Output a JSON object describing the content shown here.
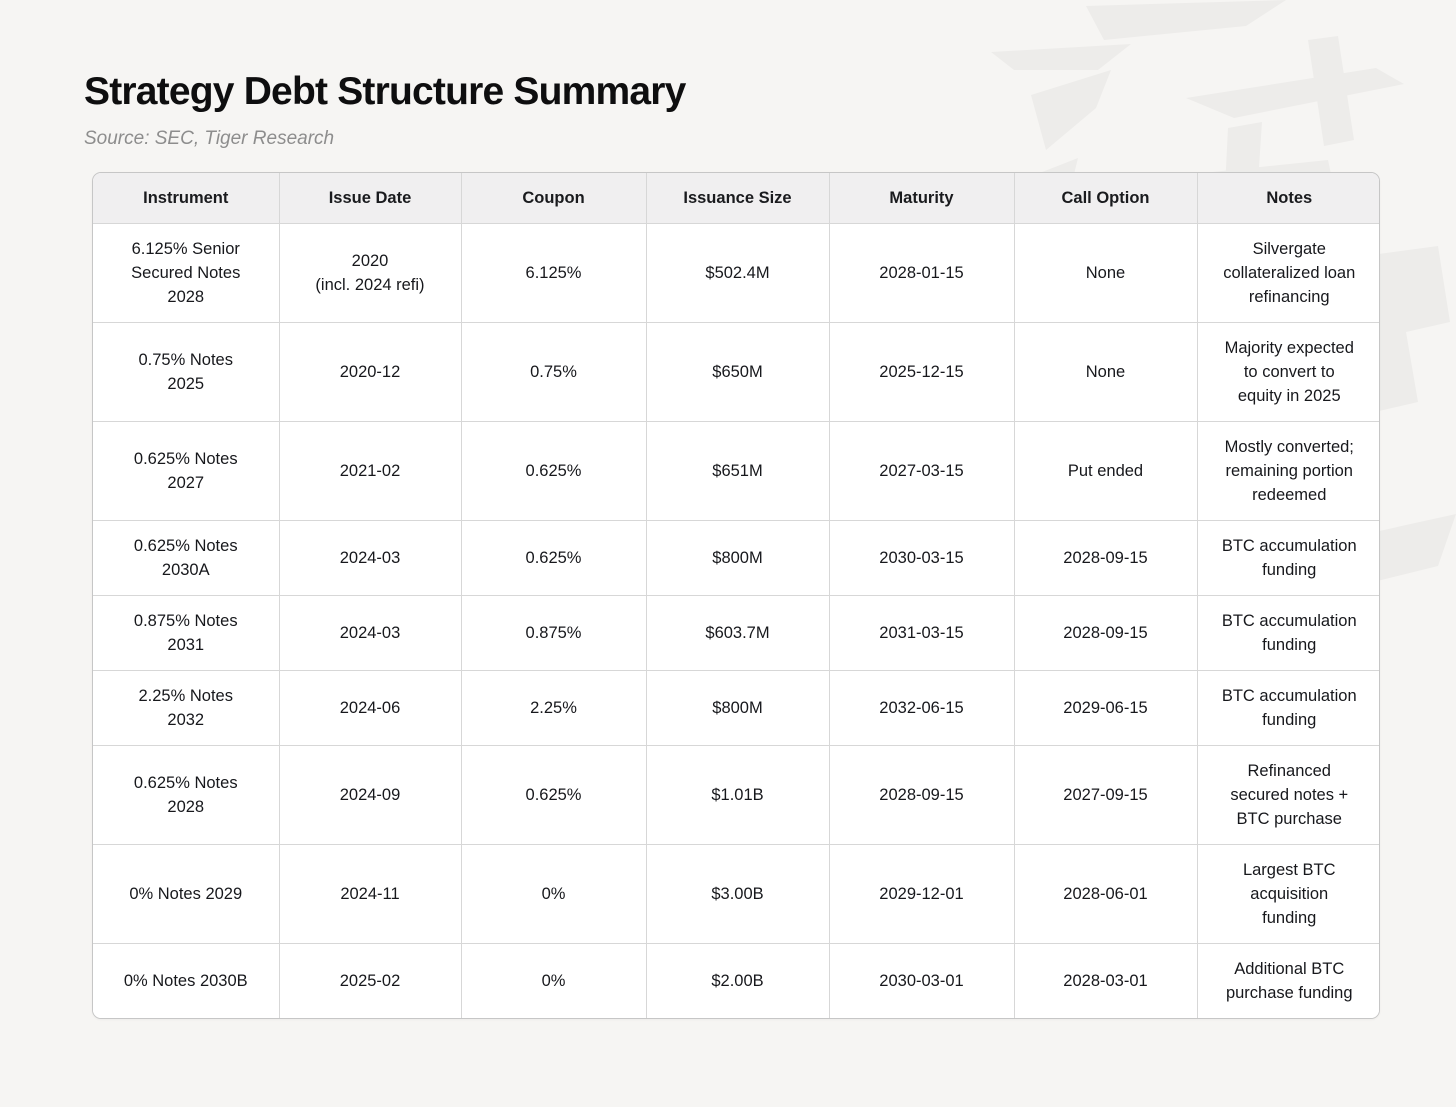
{
  "header": {
    "title": "Strategy Debt Structure Summary",
    "source": "Source: SEC, Tiger Research"
  },
  "colors": {
    "page_background": "#f6f5f3",
    "watermark": "#edecea",
    "table_outer_border": "#c6c6c6",
    "cell_border": "#d7d7d7",
    "header_background": "#f0eff0",
    "row_background": "#ffffff",
    "text": "#17181c",
    "subtitle_text": "#8d8d8d"
  },
  "watermark": {
    "name": "tiger-research-logo-watermark"
  },
  "table": {
    "columns": [
      "Instrument",
      "Issue Date",
      "Coupon",
      "Issuance Size",
      "Maturity",
      "Call Option",
      "Notes"
    ],
    "column_keys": [
      "instrument",
      "issue-date",
      "coupon",
      "issuance-size",
      "maturity",
      "call-option",
      "notes"
    ],
    "rows": [
      [
        "6.125% Senior\nSecured Notes\n2028",
        "2020\n(incl. 2024 refi)",
        "6.125%",
        "$502.4M",
        "2028-01-15",
        "None",
        "Silvergate\ncollateralized loan\nrefinancing"
      ],
      [
        "0.75% Notes\n2025",
        "2020-12",
        "0.75%",
        "$650M",
        "2025-12-15",
        "None",
        "Majority expected\nto convert to\nequity in 2025"
      ],
      [
        "0.625% Notes\n2027",
        "2021-02",
        "0.625%",
        "$651M",
        "2027-03-15",
        "Put ended",
        "Mostly converted;\nremaining portion\nredeemed"
      ],
      [
        "0.625% Notes\n2030A",
        "2024-03",
        "0.625%",
        "$800M",
        "2030-03-15",
        "2028-09-15",
        "BTC accumulation\nfunding"
      ],
      [
        "0.875% Notes\n2031",
        "2024-03",
        "0.875%",
        "$603.7M",
        "2031-03-15",
        "2028-09-15",
        "BTC accumulation\nfunding"
      ],
      [
        "2.25% Notes\n2032",
        "2024-06",
        "2.25%",
        "$800M",
        "2032-06-15",
        "2029-06-15",
        "BTC accumulation\nfunding"
      ],
      [
        "0.625% Notes\n2028",
        "2024-09",
        "0.625%",
        "$1.01B",
        "2028-09-15",
        "2027-09-15",
        "Refinanced\nsecured notes +\nBTC purchase"
      ],
      [
        "0% Notes 2029",
        "2024-11",
        "0%",
        "$3.00B",
        "2029-12-01",
        "2028-06-01",
        "Largest BTC\nacquisition\nfunding"
      ],
      [
        "0% Notes 2030B",
        "2025-02",
        "0%",
        "$2.00B",
        "2030-03-01",
        "2028-03-01",
        "Additional BTC\npurchase funding"
      ]
    ]
  }
}
